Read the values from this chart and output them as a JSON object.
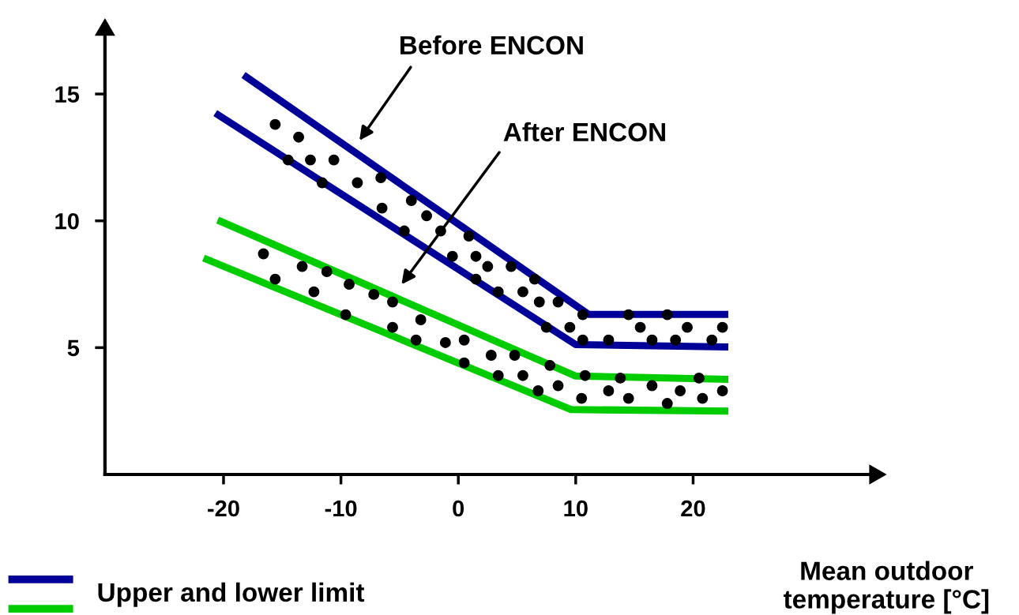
{
  "chart_data": {
    "type": "line",
    "xlabel": "Mean outdoor\ntemperature [°C]",
    "xlim": [
      -30.1,
      35
    ],
    "ylim": [
      0,
      17.3
    ],
    "xticks": [
      -20,
      -10,
      0,
      10,
      20
    ],
    "yticks": [
      5,
      10,
      15
    ],
    "grid": false,
    "legend": "bottom left",
    "marker": "none",
    "line_style": "solid",
    "series": [
      {
        "name": "Upper and lower limit",
        "color": "#000099",
        "x": [
          -18.3,
          11.1,
          23.0
        ],
        "values": [
          15.75,
          6.31,
          6.31
        ]
      },
      {
        "color": "#000099",
        "x": [
          -20.7,
          10.0,
          23.0
        ],
        "values": [
          14.25,
          5.12,
          5.03
        ]
      },
      {
        "color": "#00cc00",
        "x": [
          -20.5,
          10.0,
          23.0
        ],
        "values": [
          10.03,
          3.88,
          3.75
        ]
      },
      {
        "color": "#00cc00",
        "x": [
          -21.7,
          9.6,
          23.0
        ],
        "values": [
          8.53,
          2.56,
          2.5
        ]
      },
      {
        "type": "scatter",
        "color": "#000000",
        "marker": "circle",
        "x": [
          -15.6,
          -13.6,
          -14.5,
          -12.6,
          -10.6,
          -11.6,
          -8.6,
          -6.6,
          -6.5,
          -4.0,
          -2.7,
          -4.6,
          -1.5,
          0.9,
          -0.5,
          1.5,
          2.5,
          1.5,
          4.5,
          6.5,
          5.5,
          3.4,
          6.9,
          8.5,
          7.5,
          9.5,
          10.6,
          10.6,
          12.8,
          14.5,
          15.5,
          16.5,
          17.8,
          18.5,
          19.5,
          21.6,
          22.5
        ],
        "values": [
          13.8,
          13.3,
          12.4,
          12.4,
          12.4,
          11.5,
          11.5,
          11.7,
          10.5,
          10.8,
          10.2,
          9.6,
          9.6,
          9.4,
          8.6,
          8.6,
          8.2,
          7.7,
          8.2,
          7.7,
          7.2,
          7.2,
          6.8,
          6.8,
          5.8,
          5.8,
          6.3,
          5.3,
          5.3,
          6.3,
          5.8,
          5.3,
          6.3,
          5.3,
          5.8,
          5.3,
          5.8
        ]
      },
      {
        "type": "scatter",
        "color": "#000000",
        "marker": "circle",
        "x": [
          -16.6,
          -15.6,
          -13.3,
          -11.2,
          -12.3,
          -9.3,
          -7.2,
          -9.6,
          -5.6,
          -5.6,
          -3.2,
          -3.6,
          -1.1,
          0.5,
          0.5,
          2.8,
          4.8,
          3.4,
          5.5,
          7.8,
          6.8,
          8.5,
          10.8,
          10.5,
          12.8,
          13.8,
          14.5,
          16.5,
          17.8,
          18.9,
          20.5,
          20.8,
          22.5
        ],
        "values": [
          8.7,
          7.7,
          8.2,
          8.0,
          7.2,
          7.5,
          7.1,
          6.3,
          6.8,
          5.8,
          6.1,
          5.3,
          5.2,
          5.3,
          4.4,
          4.7,
          4.7,
          3.9,
          3.9,
          4.3,
          3.3,
          3.5,
          3.9,
          3.0,
          3.3,
          3.8,
          3.0,
          3.5,
          2.8,
          3.3,
          3.8,
          3.0,
          3.3
        ]
      }
    ],
    "annotations": [
      "Before ENCON",
      "After ENCON"
    ]
  }
}
